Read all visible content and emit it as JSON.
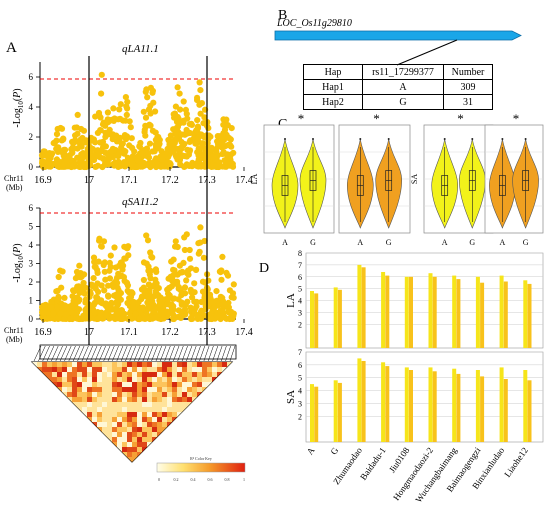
{
  "panels": {
    "A": "A",
    "B": "B",
    "C": "C",
    "D": "D"
  },
  "panelA": {
    "qtl1": "qLA11.1",
    "qtl2": "qSA11.2",
    "ylabel": "-Log10(P)",
    "chrom": "Chr11",
    "unit": "(Mb)",
    "xticks": [
      "16.9",
      "17",
      "17.1",
      "17.2",
      "17.3",
      "17.4"
    ],
    "yticks1": [
      "0",
      "2",
      "4",
      "6"
    ],
    "yticks2": [
      "0",
      "1",
      "2",
      "3",
      "4",
      "5",
      "6"
    ],
    "ld_legend_title": "R² Color Key",
    "ld_legend_ticks": [
      "0",
      "0.2",
      "0.4",
      "0.6",
      "0.8",
      "1"
    ]
  },
  "panelB": {
    "gene": "LOC_Os11g29810",
    "headers": [
      "Hap",
      "rs11_17299377",
      "Number"
    ],
    "rows": [
      [
        "Hap1",
        "A",
        "309"
      ],
      [
        "Hap2",
        "G",
        "31"
      ]
    ]
  },
  "panelC": {
    "plots": [
      {
        "ylabel": "LA",
        "sig": "*",
        "color": "#f2f21a"
      },
      {
        "ylabel": "",
        "sig": "*",
        "color": "#f0a020"
      },
      {
        "ylabel": "SA",
        "sig": "*",
        "color": "#f2f21a"
      },
      {
        "ylabel": "",
        "sig": "*",
        "color": "#f0a020"
      }
    ],
    "groups": [
      "A",
      "G"
    ]
  },
  "chart_data": [
    {
      "type": "bar",
      "title": "",
      "ylabel": "LA",
      "ylim": [
        0,
        8
      ],
      "yticks": [
        2,
        3,
        4,
        5,
        6,
        7,
        8
      ],
      "categories": [
        "A",
        "G",
        "Zhumaodao",
        "Baidadu-1",
        "Jiu0108",
        "Hongmaodaozi-2",
        "Wuchangbaimang",
        "Baimaogengzi",
        "Binxianludao",
        "Liaohe12"
      ],
      "series": [
        {
          "values": [
            4.8,
            5.1,
            7.0,
            6.4,
            6.0,
            6.3,
            6.1,
            6.0,
            6.1,
            5.7
          ],
          "color": "#f6e51a"
        },
        {
          "values": [
            4.6,
            4.9,
            6.8,
            6.1,
            6.0,
            6.0,
            5.8,
            5.5,
            5.6,
            5.4
          ],
          "color": "#f8c21b"
        }
      ]
    },
    {
      "type": "bar",
      "title": "",
      "ylabel": "SA",
      "ylim": [
        0,
        7
      ],
      "yticks": [
        2,
        3,
        4,
        5,
        6,
        7
      ],
      "categories": [
        "A",
        "G",
        "Zhumaodao",
        "Baidadu-1",
        "Jiu0108",
        "Hongmaodaozi-2",
        "Wuchangbaimang",
        "Baimaogengzi",
        "Binxianludao",
        "Liaohe12"
      ],
      "series": [
        {
          "values": [
            4.5,
            4.8,
            6.5,
            6.2,
            5.8,
            5.8,
            5.7,
            5.6,
            5.8,
            5.6
          ],
          "color": "#f6e51a"
        },
        {
          "values": [
            4.3,
            4.6,
            6.3,
            5.9,
            5.6,
            5.5,
            5.3,
            5.1,
            4.9,
            4.8
          ],
          "color": "#f8c21b"
        }
      ]
    }
  ]
}
